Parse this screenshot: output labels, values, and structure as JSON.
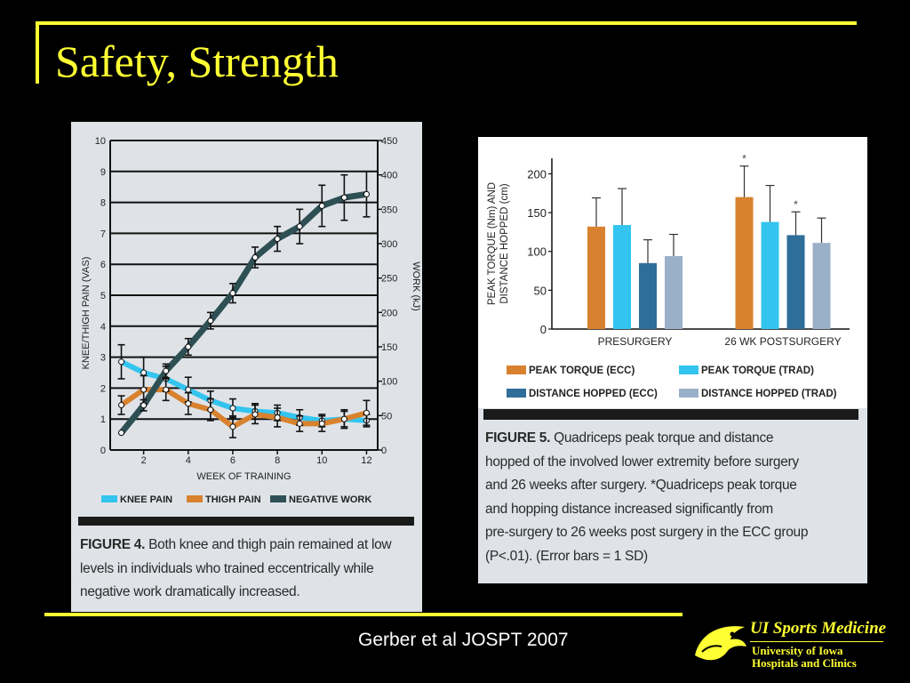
{
  "slide": {
    "title": "Safety, Strength",
    "citation": "Gerber et al JOSPT 2007",
    "logo": {
      "line1": "UI Sports Medicine",
      "line2": "University of Iowa",
      "line3": "Hospitals and Clinics"
    },
    "colors": {
      "accent": "#ffff33",
      "background": "#000000"
    }
  },
  "figure4": {
    "caption_bold": "FIGURE 4.",
    "caption_text": "Both knee and thigh pain remained at low levels in individuals who trained eccentrically while negative work dramatically increased.",
    "caption_lines": [
      "Both knee and thigh pain remained at low",
      "levels in individuals who trained eccentrically while",
      "negative work dramatically increased."
    ]
  },
  "figure5": {
    "caption_bold": "FIGURE 5.",
    "caption_lines": [
      "Quadriceps peak torque and distance",
      "hopped of the involved lower extremity before surgery",
      "and 26 weeks after surgery. *Quadriceps peak torque",
      "and hopping distance increased significantly from",
      "pre-surgery to 26 weeks post surgery in the ECC group",
      "(P<.01). (Error bars = 1 SD)"
    ]
  },
  "chart_data": [
    {
      "type": "line",
      "xlabel": "WEEK OF TRAINING",
      "ylabel": "KNEE/THIGH PAIN (VAS)",
      "y2label": "WORK (kJ)",
      "ylim": [
        0,
        10
      ],
      "y2lim": [
        0,
        450
      ],
      "xlim": [
        0.5,
        12.5
      ],
      "xticks": [
        2,
        4,
        6,
        8,
        10,
        12
      ],
      "yticks": [
        0,
        1,
        2,
        3,
        4,
        5,
        6,
        7,
        8,
        9,
        10
      ],
      "y2ticks": [
        0,
        50,
        100,
        150,
        200,
        250,
        300,
        350,
        400,
        450
      ],
      "grid": true,
      "legend_position": "bottom",
      "x": [
        1,
        2,
        3,
        4,
        5,
        6,
        7,
        8,
        9,
        10,
        11,
        12
      ],
      "series": [
        {
          "name": "KNEE PAIN",
          "color": "#33c4ef",
          "axis": "left",
          "values": [
            2.85,
            2.5,
            2.3,
            1.95,
            1.6,
            1.35,
            1.25,
            1.2,
            1.05,
            0.95,
            1.0,
            0.95
          ],
          "error": [
            0.55,
            0.5,
            0.4,
            0.4,
            0.3,
            0.3,
            0.25,
            0.25,
            0.25,
            0.2,
            0.25,
            0.2
          ]
        },
        {
          "name": "THIGH PAIN",
          "color": "#d8822f",
          "axis": "left",
          "values": [
            1.45,
            1.95,
            1.95,
            1.5,
            1.3,
            0.75,
            1.15,
            1.05,
            0.85,
            0.85,
            1.0,
            1.2
          ],
          "error": [
            0.3,
            0.45,
            0.35,
            0.35,
            0.35,
            0.35,
            0.3,
            0.3,
            0.25,
            0.25,
            0.3,
            0.4
          ]
        },
        {
          "name": "NEGATIVE WORK",
          "color": "#2e5055",
          "axis": "right",
          "values": [
            25,
            65,
            115,
            150,
            188,
            228,
            280,
            307,
            325,
            355,
            367,
            372
          ],
          "error": [
            0,
            8,
            10,
            12,
            12,
            14,
            15,
            18,
            25,
            30,
            33,
            33
          ]
        }
      ]
    },
    {
      "type": "bar",
      "ylabel": "PEAK TORQUE (Nm) AND DISTANCE HOPPED (cm)",
      "ylim": [
        0,
        220
      ],
      "yticks": [
        0,
        50,
        100,
        150,
        200
      ],
      "categories": [
        "PRESURGERY",
        "26 WK POSTSURGERY"
      ],
      "legend_position": "bottom",
      "series": [
        {
          "name": "PEAK TORQUE (ECC)",
          "color": "#d8822f",
          "values": [
            132,
            170
          ],
          "error": [
            37,
            40
          ],
          "sig": [
            "",
            "*"
          ]
        },
        {
          "name": "PEAK TORQUE (TRAD)",
          "color": "#33c4ef",
          "values": [
            134,
            138
          ],
          "error": [
            47,
            47
          ],
          "sig": [
            "",
            ""
          ]
        },
        {
          "name": "DISTANCE HOPPED (ECC)",
          "color": "#2f6e99",
          "values": [
            85,
            121
          ],
          "error": [
            30,
            30
          ],
          "sig": [
            "",
            "*"
          ]
        },
        {
          "name": "DISTANCE HOPPED (TRAD)",
          "color": "#9ab0c8",
          "values": [
            94,
            111
          ],
          "error": [
            28,
            32
          ],
          "sig": [
            "",
            ""
          ]
        }
      ]
    }
  ]
}
